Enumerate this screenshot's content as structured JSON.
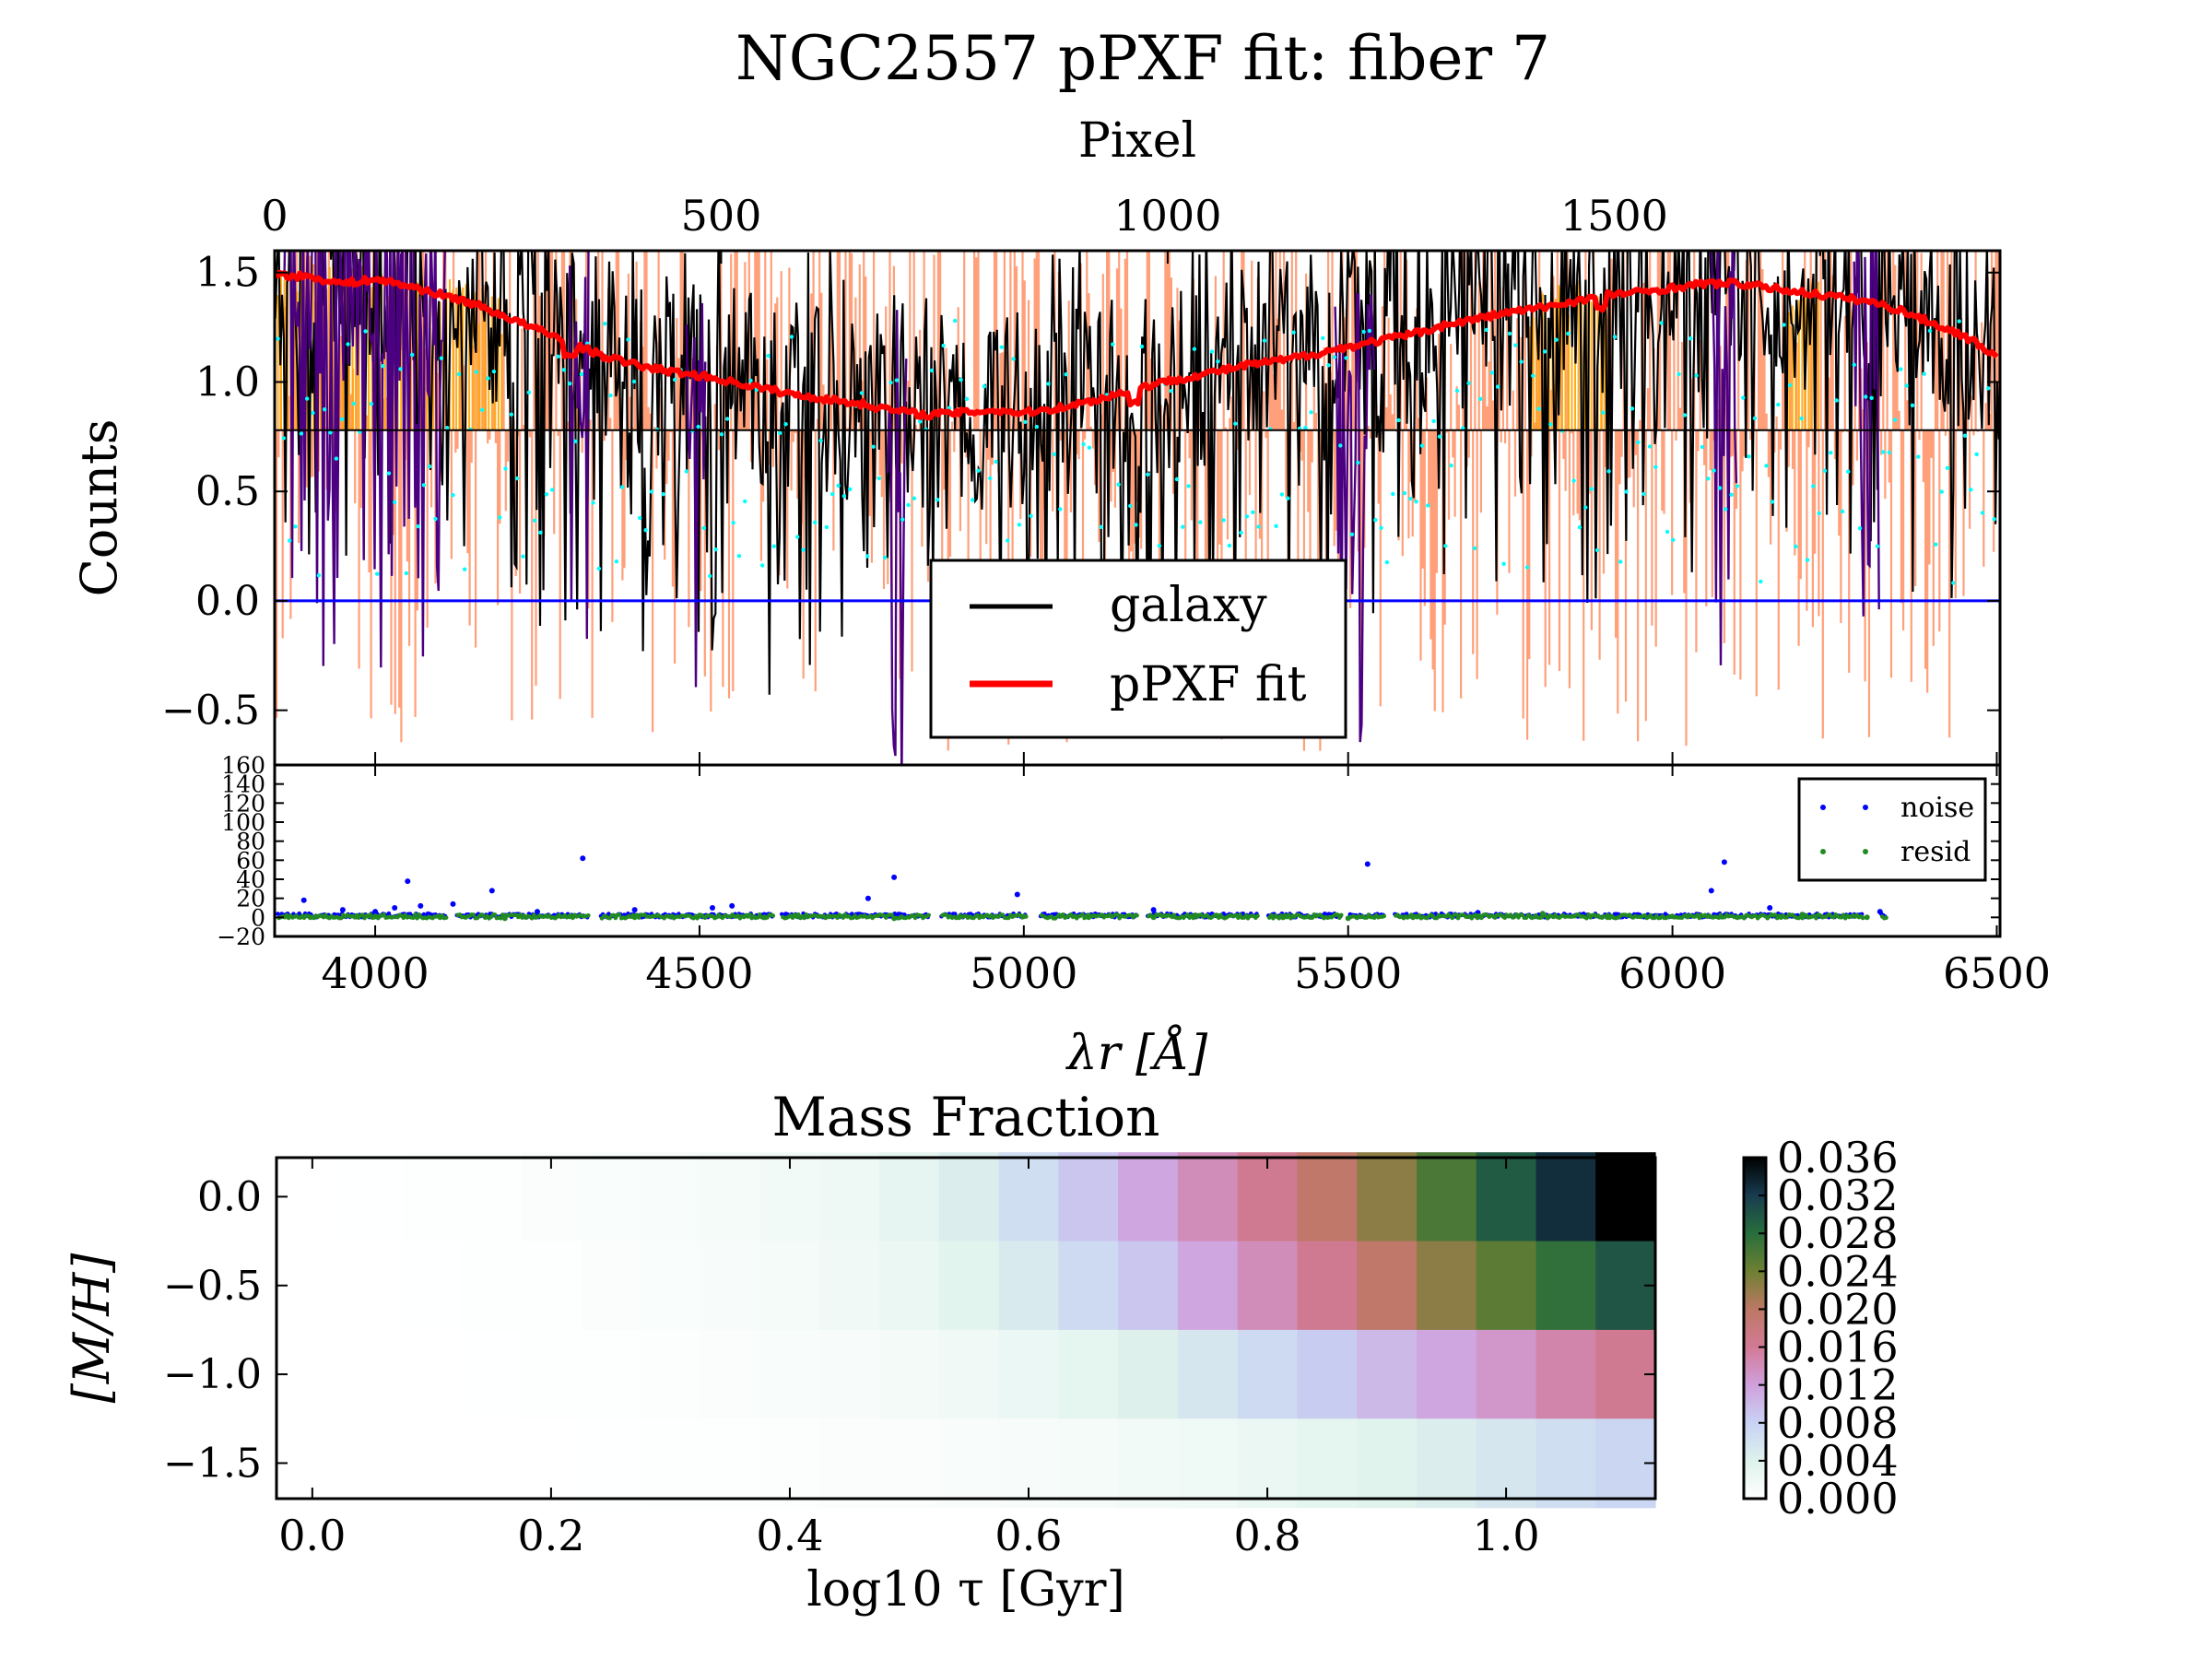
{
  "title": "NGC2557 pPXF fit: fiber 7",
  "colors": {
    "galaxy": "#000000",
    "galaxy_masked": "#4b0082",
    "galaxy_goodpix": "#ffa500",
    "fit": "#ff0000",
    "residual_band": "#ffa07a",
    "residual_points": "#00ffff",
    "zero_line": "#0000ff",
    "noise": "#0000ff",
    "resid": "#228b22"
  },
  "chart_data": [
    {
      "type": "line",
      "panel": "spectrum",
      "ylabel": "Counts",
      "x2label": "Pixel",
      "xlim": [
        3845,
        6505
      ],
      "ylim": [
        -0.75,
        1.6
      ],
      "x_ticks": [
        4000,
        4500,
        5000,
        5500,
        6000,
        6500
      ],
      "y_ticks": [
        -0.5,
        0.0,
        0.5,
        1.0,
        1.5
      ],
      "x2lim": [
        0,
        1932
      ],
      "x2_ticks": [
        0,
        500,
        1000,
        1500
      ],
      "legend": {
        "position": "lower-center",
        "entries": [
          "galaxy",
          "pPXF fit"
        ]
      },
      "reference_lines": {
        "zero": 0.0,
        "residual_offset": 0.78
      },
      "series": [
        {
          "name": "pPXF fit",
          "x": [
            3850,
            3900,
            3950,
            4000,
            4050,
            4100,
            4150,
            4200,
            4250,
            4300,
            4350,
            4400,
            4450,
            4500,
            4550,
            4600,
            4650,
            4700,
            4750,
            4800,
            4850,
            4900,
            4950,
            5000,
            5050,
            5100,
            5150,
            5200,
            5250,
            5300,
            5350,
            5400,
            5450,
            5500,
            5550,
            5600,
            5650,
            5700,
            5750,
            5800,
            5850,
            5900,
            5950,
            6000,
            6050,
            6100,
            6150,
            6200,
            6250,
            6300,
            6350,
            6400,
            6450,
            6500
          ],
          "y": [
            1.49,
            1.48,
            1.45,
            1.47,
            1.44,
            1.4,
            1.36,
            1.3,
            1.24,
            1.18,
            1.12,
            1.08,
            1.05,
            1.03,
            1.0,
            0.97,
            0.94,
            0.92,
            0.9,
            0.87,
            0.85,
            0.86,
            0.87,
            0.86,
            0.88,
            0.91,
            0.95,
            0.99,
            1.02,
            1.05,
            1.08,
            1.1,
            1.13,
            1.16,
            1.19,
            1.22,
            1.26,
            1.29,
            1.32,
            1.34,
            1.37,
            1.4,
            1.41,
            1.43,
            1.45,
            1.45,
            1.43,
            1.41,
            1.39,
            1.37,
            1.33,
            1.27,
            1.21,
            1.12
          ]
        }
      ]
    },
    {
      "type": "scatter",
      "panel": "noise",
      "xlabel": "λr [Å]",
      "xlim": [
        3845,
        6505
      ],
      "ylim": [
        -20,
        160
      ],
      "y_ticks": [
        -20,
        0,
        20,
        40,
        60,
        80,
        100,
        120,
        140,
        160
      ],
      "x_ticks": [
        4000,
        4500,
        5000,
        5500,
        6000,
        6500
      ],
      "legend": {
        "position": "top-right",
        "entries": [
          "noise",
          "resid"
        ]
      },
      "series": [
        {
          "name": "noise",
          "x": [
            3890,
            3950,
            4000,
            4030,
            4050,
            4070,
            4120,
            4180,
            4250,
            4320,
            4400,
            4520,
            4550,
            4760,
            4800,
            4990,
            5200,
            5530,
            5700,
            6060,
            6080,
            6150,
            6320
          ],
          "y": [
            18,
            8,
            6,
            10,
            38,
            12,
            14,
            28,
            6,
            62,
            8,
            10,
            12,
            20,
            42,
            24,
            8,
            56,
            5,
            28,
            58,
            10,
            6
          ]
        },
        {
          "name": "resid",
          "x": [
            3900,
            4000,
            4100,
            4200,
            4300,
            4400,
            4500,
            4600,
            4700,
            4800,
            4900,
            5000,
            5100,
            5200,
            5300,
            5400,
            5500,
            5600,
            5700,
            5800,
            5900,
            6000,
            6100,
            6200,
            6300
          ],
          "y": [
            0,
            1,
            0,
            -1,
            1,
            0,
            2,
            0,
            1,
            -1,
            0,
            1,
            0,
            0,
            1,
            0,
            -1,
            0,
            1,
            4,
            0,
            1,
            0,
            3,
            0
          ]
        }
      ]
    },
    {
      "type": "heatmap",
      "title": "Mass Fraction",
      "xlabel": "log10 τ [Gyr]",
      "ylabel": "[M/H]",
      "xlim": [
        -0.03,
        1.125
      ],
      "ylim": [
        -1.7,
        0.22
      ],
      "x_ticks": [
        0.0,
        0.2,
        0.4,
        0.6,
        0.8,
        1.0
      ],
      "y_ticks": [
        -1.5,
        -1.0,
        -0.5,
        0.0
      ],
      "x_centers": [
        0.0,
        0.05,
        0.1,
        0.15,
        0.2,
        0.25,
        0.3,
        0.35,
        0.4,
        0.45,
        0.5,
        0.55,
        0.6,
        0.65,
        0.7,
        0.75,
        0.8,
        0.85,
        0.9,
        0.95,
        1.0,
        1.05,
        1.1
      ],
      "y_centers": [
        0.0,
        -0.5,
        -1.0,
        -1.5
      ],
      "colorbar": {
        "range": [
          0.0,
          0.036
        ],
        "ticks": [
          "0.000",
          "0.004",
          "0.008",
          "0.012",
          "0.016",
          "0.020",
          "0.024",
          "0.028",
          "0.032",
          "0.036"
        ]
      },
      "values": [
        [
          0.0,
          0.0001,
          0.0002,
          0.0003,
          0.0005,
          0.0007,
          0.0009,
          0.0012,
          0.0016,
          0.0021,
          0.003,
          0.0045,
          0.0065,
          0.009,
          0.0115,
          0.014,
          0.0165,
          0.0195,
          0.0225,
          0.026,
          0.0295,
          0.033,
          0.036
        ],
        [
          0.0,
          0.0,
          0.0001,
          0.0002,
          0.0003,
          0.0005,
          0.0007,
          0.001,
          0.0013,
          0.0018,
          0.0025,
          0.0035,
          0.005,
          0.007,
          0.009,
          0.0115,
          0.014,
          0.0165,
          0.0195,
          0.0225,
          0.025,
          0.0275,
          0.03
        ],
        [
          0.0,
          0.0,
          0.0,
          0.0001,
          0.0002,
          0.0003,
          0.0004,
          0.0006,
          0.0008,
          0.001,
          0.0014,
          0.0018,
          0.0024,
          0.0032,
          0.0042,
          0.0055,
          0.007,
          0.0085,
          0.01,
          0.0115,
          0.013,
          0.0148,
          0.0165
        ],
        [
          0.0,
          0.0,
          0.0,
          0.0,
          0.0,
          0.0001,
          0.0002,
          0.0003,
          0.0004,
          0.0005,
          0.0006,
          0.0008,
          0.001,
          0.0013,
          0.0016,
          0.002,
          0.0025,
          0.0031,
          0.0038,
          0.0046,
          0.0055,
          0.0065,
          0.0075
        ]
      ]
    }
  ]
}
